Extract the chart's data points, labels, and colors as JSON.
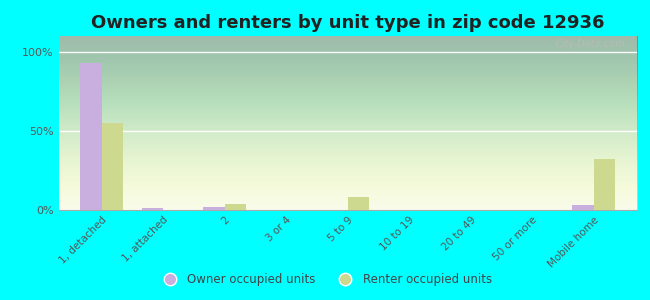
{
  "title": "Owners and renters by unit type in zip code 12936",
  "categories": [
    "1, detached",
    "1, attached",
    "2",
    "3 or 4",
    "5 to 9",
    "10 to 19",
    "20 to 49",
    "50 or more",
    "Mobile home"
  ],
  "owner_values": [
    93,
    1,
    2,
    0,
    0,
    0,
    0,
    0,
    3
  ],
  "renter_values": [
    55,
    0,
    4,
    0,
    8,
    0,
    0,
    0,
    32
  ],
  "owner_color": "#c9aee0",
  "renter_color": "#ccd98f",
  "background_color": "#00ffff",
  "ylabel_ticks": [
    0,
    50,
    100
  ],
  "ylabel_tick_labels": [
    "0%",
    "50%",
    "100%"
  ],
  "ylim": [
    0,
    110
  ],
  "bar_width": 0.35,
  "legend_owner": "Owner occupied units",
  "legend_renter": "Renter occupied units",
  "title_fontsize": 13,
  "watermark": "City-Data.com"
}
